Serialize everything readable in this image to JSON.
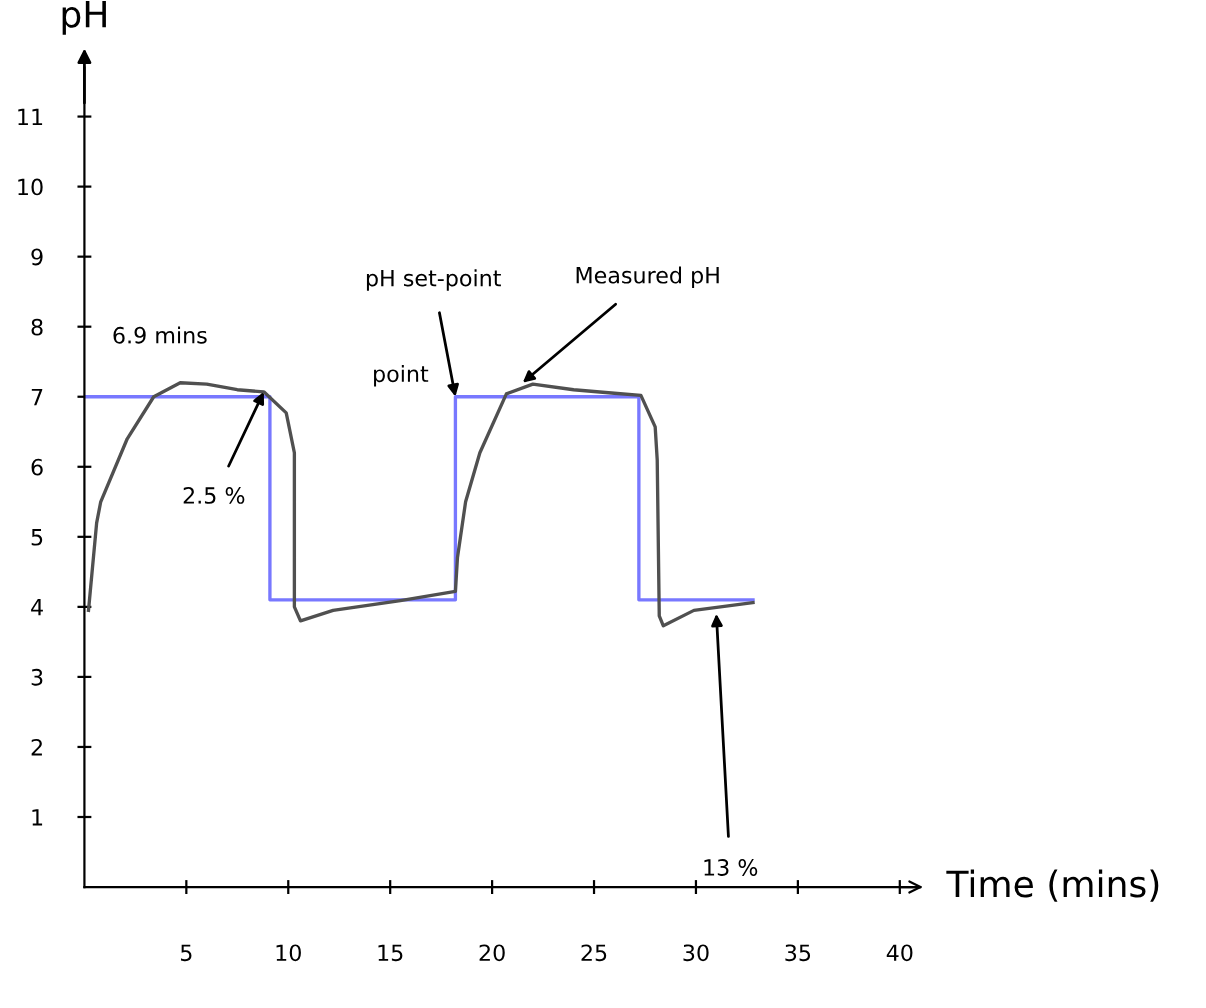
{
  "chart_data": {
    "type": "line",
    "xlabel": "Time (mins)",
    "ylabel": "pH",
    "xlim": [
      0,
      41
    ],
    "ylim": [
      0,
      11.7
    ],
    "xticks": [
      5,
      10,
      15,
      20,
      25,
      30,
      35,
      40
    ],
    "yticks": [
      1,
      2,
      3,
      4,
      5,
      6,
      7,
      8,
      9,
      10,
      11
    ],
    "grid": false,
    "legend": false,
    "marker": "none",
    "series": [
      {
        "type": "step",
        "color": "#7878ff",
        "x": [
          0,
          9.1,
          18.2,
          27.2,
          32.8
        ],
        "values": [
          7.0,
          4.1,
          7.0,
          4.1,
          4.1
        ]
      },
      {
        "color": "#505050",
        "x": [
          0.2,
          0.6,
          0.8,
          2.1,
          3.4,
          4.7,
          6.0,
          7.5,
          8.8,
          9.9,
          10.3,
          10.3,
          10.6,
          12.2,
          15.5,
          18.2,
          18.3,
          18.7,
          19.4,
          20.7,
          22.0,
          24.0,
          26.0,
          27.3,
          28.0,
          28.1,
          28.2,
          28.4,
          29.9,
          32.8
        ],
        "values": [
          3.95,
          5.2,
          5.5,
          6.4,
          7.0,
          7.2,
          7.18,
          7.1,
          7.07,
          6.77,
          6.2,
          4.0,
          3.8,
          3.95,
          4.09,
          4.22,
          4.7,
          5.5,
          6.2,
          7.04,
          7.18,
          7.1,
          7.05,
          7.02,
          6.57,
          6.1,
          3.87,
          3.73,
          3.95,
          4.06
        ]
      }
    ],
    "annotations": [
      "6.9 mins",
      {
        "text": "2.5 %",
        "x": 8.8,
        "y": 7.07
      },
      {
        "text": "pH set-point",
        "x": 18.2,
        "y": 7.0
      },
      "point",
      {
        "text": "Measured pH",
        "x": 21.5,
        "y": 7.2
      },
      {
        "text": "13 %",
        "x": 31.0,
        "y": 3.9
      }
    ]
  }
}
